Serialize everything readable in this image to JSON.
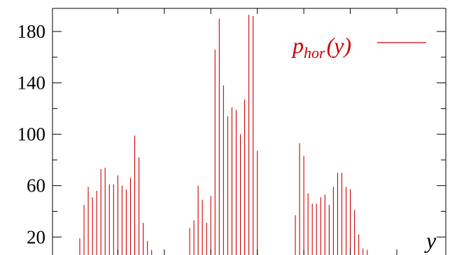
{
  "chart_data": {
    "type": "bar",
    "title": "",
    "xlabel": "y",
    "ylabel": "",
    "ylim": [
      6,
      198
    ],
    "yticks": [
      20,
      60,
      100,
      140,
      180
    ],
    "ytick_labels": [
      "20",
      "60",
      "100",
      "140",
      "180"
    ],
    "grid": false,
    "legend": "top-right",
    "series": [
      {
        "legend": {
          "base": "p",
          "sub": "hor",
          "suffix": "(y)"
        },
        "color": "#cc0000",
        "x": [
          1,
          2,
          3,
          4,
          5,
          6,
          7,
          8,
          9,
          10,
          11,
          12,
          13,
          14,
          15,
          16,
          17,
          18,
          19,
          20,
          21,
          22,
          23,
          24,
          25,
          26,
          27,
          28,
          29,
          30,
          31,
          32,
          33,
          34,
          35,
          36,
          37,
          38,
          39,
          40,
          41,
          42,
          43,
          44,
          45,
          46,
          47,
          48,
          49,
          50,
          51,
          52,
          53,
          54,
          55,
          56,
          57,
          58,
          59,
          60,
          61,
          62,
          63,
          64,
          65,
          66,
          67,
          68,
          69,
          70,
          71,
          72,
          73,
          74,
          75,
          76
        ],
        "values": [
          19,
          45,
          59,
          51,
          56,
          73,
          74,
          61,
          61,
          68,
          60,
          57,
          66,
          99,
          82,
          31,
          17,
          10,
          6,
          0,
          0,
          0,
          0,
          0,
          0,
          0,
          27,
          33,
          60,
          49,
          31,
          52,
          166,
          190,
          138,
          114,
          121,
          119,
          100,
          127,
          193,
          192,
          87,
          0,
          0,
          0,
          0,
          0,
          0,
          0,
          0,
          37,
          93,
          83,
          54,
          46,
          46,
          51,
          53,
          45,
          59,
          70,
          70,
          59,
          57,
          41,
          22,
          11,
          10,
          0,
          0,
          0,
          0,
          0,
          0,
          0
        ]
      }
    ]
  }
}
